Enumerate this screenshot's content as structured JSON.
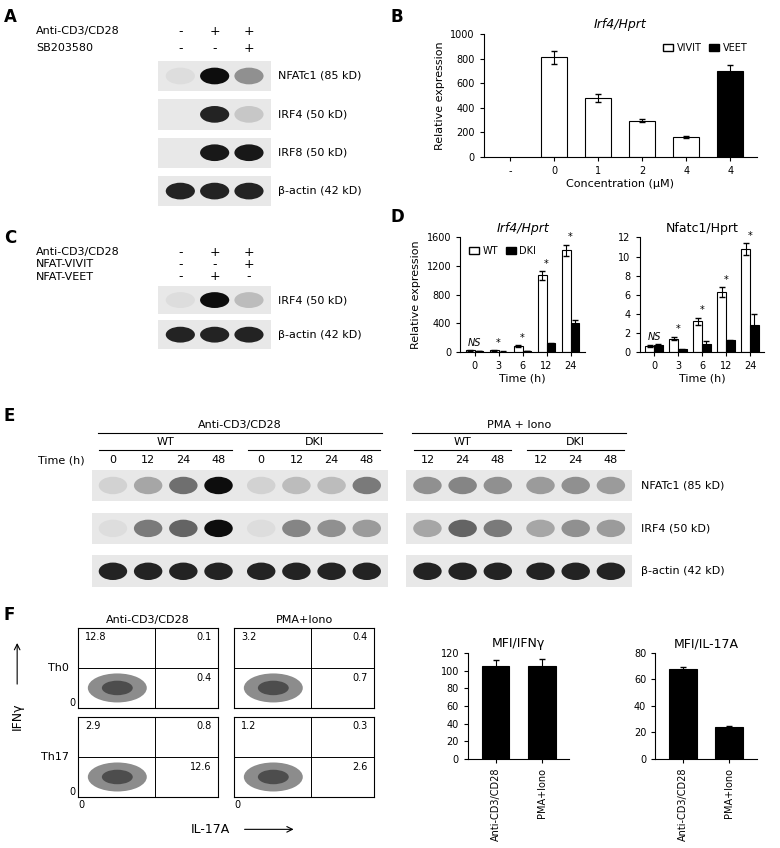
{
  "chart_data": [
    {
      "panel": "B",
      "type": "bar",
      "title": "Irf4/Hprt",
      "y_label": "Relative expression",
      "x_label": "Concentration (μM)",
      "categories": [
        "-",
        "0",
        "1",
        "2",
        "4",
        "4"
      ],
      "series": [
        {
          "name": "VIVIT",
          "color": "#ffffff",
          "values": [
            null,
            810,
            480,
            295,
            160,
            null
          ],
          "errors": [
            null,
            55,
            35,
            10,
            8,
            null
          ]
        },
        {
          "name": "VEET",
          "color": "#000000",
          "values": [
            null,
            null,
            null,
            null,
            null,
            700
          ],
          "errors": [
            null,
            null,
            null,
            null,
            null,
            50
          ]
        }
      ],
      "ylim": [
        0,
        1000
      ],
      "yticks": [
        0,
        200,
        400,
        600,
        800,
        1000
      ],
      "legend": "upper right"
    },
    {
      "panel": "D",
      "type": "bar",
      "title": "Irf4/Hprt",
      "y_label": "Relative expression",
      "x_label": "Time (h)",
      "categories": [
        "0",
        "3",
        "6",
        "12",
        "24"
      ],
      "series": [
        {
          "name": "WT",
          "color": "#ffffff",
          "values": [
            20,
            20,
            80,
            1070,
            1420
          ],
          "errors": [
            5,
            5,
            10,
            60,
            80
          ]
        },
        {
          "name": "DKI",
          "color": "#000000",
          "values": [
            15,
            5,
            10,
            120,
            400
          ],
          "errors": [
            3,
            2,
            3,
            10,
            40
          ]
        }
      ],
      "annotations": [
        "NS",
        "*",
        "*",
        "*",
        "*"
      ],
      "ylim": [
        0,
        1600
      ],
      "yticks": [
        0,
        400,
        800,
        1200,
        1600
      ],
      "legend": "upper left"
    },
    {
      "type": "bar",
      "title": "Nfatc1/Hprt",
      "x_label": "Time (h)",
      "categories": [
        "0",
        "3",
        "6",
        "12",
        "24"
      ],
      "series": [
        {
          "name": "WT",
          "color": "#ffffff",
          "values": [
            0.6,
            1.4,
            3.2,
            6.3,
            10.8
          ],
          "errors": [
            0.1,
            0.2,
            0.4,
            0.5,
            0.6
          ]
        },
        {
          "name": "DKI",
          "color": "#000000",
          "values": [
            0.7,
            0.3,
            0.8,
            1.2,
            2.8
          ],
          "errors": [
            0.1,
            0.05,
            0.3,
            0.1,
            1.2
          ]
        }
      ],
      "annotations": [
        "NS",
        "*",
        "*",
        "*",
        "*"
      ],
      "ylim": [
        0,
        12
      ],
      "yticks": [
        0,
        2,
        4,
        6,
        8,
        10,
        12
      ]
    },
    {
      "type": "bar",
      "title": "MFI/IFNγ",
      "categories": [
        "Anti-CD3/CD28",
        "PMA+Iono"
      ],
      "values": [
        105,
        105
      ],
      "errors": [
        7,
        8
      ],
      "color": "#000000",
      "ylim": [
        0,
        120
      ],
      "yticks": [
        0,
        20,
        40,
        60,
        80,
        100,
        120
      ]
    },
    {
      "type": "bar",
      "title": "MFI/IL-17A",
      "categories": [
        "Anti-CD3/CD28",
        "PMA+Iono"
      ],
      "values": [
        68,
        24
      ],
      "errors": [
        1.5,
        0.5
      ],
      "color": "#000000",
      "ylim": [
        0,
        80
      ],
      "yticks": [
        0,
        20,
        40,
        60,
        80
      ]
    }
  ],
  "blots": [
    {
      "panel": "A",
      "conditions": [
        {
          "label": "Anti-CD3/CD28",
          "values": [
            "-",
            "+",
            "+"
          ]
        },
        {
          "label": "SB203580",
          "values": [
            "-",
            "-",
            "+"
          ]
        }
      ],
      "rows": [
        {
          "label": "NFATc1 (85 kD)",
          "intensities": [
            0.05,
            1.0,
            0.4
          ]
        },
        {
          "label": "IRF4 (50 kD)",
          "intensities": [
            0.0,
            0.9,
            0.15
          ]
        },
        {
          "label": "IRF8 (50 kD)",
          "intensities": [
            0.0,
            0.95,
            0.95
          ]
        },
        {
          "label": "β-actin (42 kD)",
          "intensities": [
            0.9,
            0.9,
            0.9
          ]
        }
      ]
    },
    {
      "panel": "C",
      "conditions": [
        {
          "label": "Anti-CD3/CD28",
          "values": [
            "-",
            "+",
            "+"
          ]
        },
        {
          "label": "NFAT-VIVIT",
          "values": [
            "-",
            "-",
            "+"
          ]
        },
        {
          "label": "NFAT-VEET",
          "values": [
            "-",
            "+",
            "-"
          ]
        }
      ],
      "rows": [
        {
          "label": "IRF4 (50 kD)",
          "intensities": [
            0.05,
            1.0,
            0.2
          ]
        },
        {
          "label": "β-actin (42 kD)",
          "intensities": [
            0.9,
            0.9,
            0.9
          ]
        }
      ]
    },
    {
      "panel": "E",
      "time_label": "Time (h)",
      "groups": [
        {
          "label": "Anti-CD3/CD28",
          "subgroups": [
            {
              "label": "WT",
              "lanes": [
                0,
                12,
                24,
                48
              ]
            },
            {
              "label": "DKI",
              "lanes": [
                0,
                12,
                24,
                48
              ]
            }
          ]
        },
        {
          "label": "PMA + Iono",
          "subgroups": [
            {
              "label": "WT",
              "lanes": [
                12,
                24,
                48
              ]
            },
            {
              "label": "DKI",
              "lanes": [
                12,
                24,
                48
              ]
            }
          ]
        }
      ],
      "rows": [
        {
          "label": "NFATc1 (85 kD)",
          "intensities": [
            [
              0.1,
              0.3,
              0.55,
              1.0,
              0.1,
              0.2,
              0.2,
              0.5
            ],
            [
              0.4,
              0.45,
              0.4,
              0.35,
              0.4,
              0.35
            ]
          ]
        },
        {
          "label": "IRF4 (50 kD)",
          "intensities": [
            [
              0.05,
              0.5,
              0.6,
              1.0,
              0.05,
              0.45,
              0.4,
              0.35
            ],
            [
              0.3,
              0.6,
              0.5,
              0.3,
              0.4,
              0.35
            ]
          ]
        },
        {
          "label": "β-actin (42 kD)",
          "intensities": [
            [
              0.9,
              0.9,
              0.9,
              0.9,
              0.9,
              0.9,
              0.9,
              0.9
            ],
            [
              0.9,
              0.9,
              0.9,
              0.9,
              0.9,
              0.9
            ]
          ]
        }
      ]
    }
  ],
  "flow": {
    "panel": "F",
    "columns": [
      "Anti-CD3/CD28",
      "PMA+Iono"
    ],
    "rows": [
      "Th0",
      "Th17"
    ],
    "x_label": "IL-17A",
    "y_label": "IFNγ",
    "origin_tick": 0,
    "quadrants": [
      [
        {
          "upper_left": 12.8,
          "upper_right": 0.1,
          "lower_right": 0.4
        },
        {
          "upper_left": 3.2,
          "upper_right": 0.4,
          "lower_right": 0.7
        }
      ],
      [
        {
          "upper_left": 2.9,
          "upper_right": 0.8,
          "lower_right": 12.6
        },
        {
          "upper_left": 1.2,
          "upper_right": 0.3,
          "lower_right": 2.6
        }
      ]
    ]
  }
}
